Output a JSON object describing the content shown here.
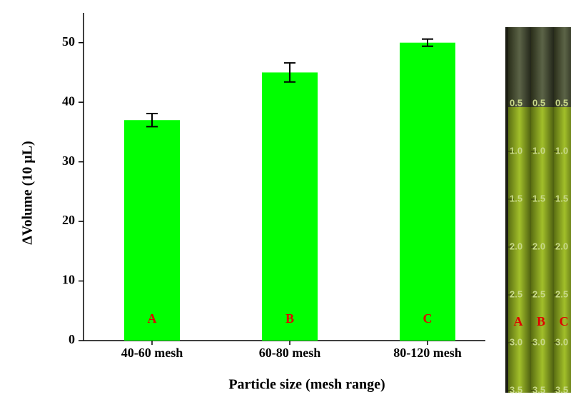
{
  "chart_data": {
    "type": "bar",
    "x_label": "Particle size (mesh range)",
    "y_label": "ΔVolume (10 μL)",
    "categories": [
      "40-60 mesh",
      "60-80 mesh",
      "80-120 mesh"
    ],
    "values": [
      37,
      45,
      50
    ],
    "errors": [
      1.1,
      1.6,
      0.6
    ],
    "bar_labels": [
      "A",
      "B",
      "C"
    ],
    "color": "#00ff00",
    "ylim": [
      0,
      55
    ],
    "yticks": [
      0,
      10,
      20,
      30,
      40,
      50
    ]
  },
  "photo": {
    "tube_labels": [
      "A",
      "B",
      "C"
    ],
    "scale_labels": [
      "0.5",
      "1.0",
      "1.5",
      "2.0",
      "2.5",
      "3.0",
      "3.5"
    ]
  }
}
